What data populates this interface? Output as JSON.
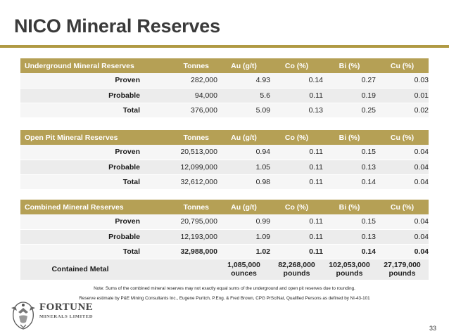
{
  "title": "NICO Mineral Reserves",
  "columns": [
    "Tonnes",
    "Au (g/t)",
    "Co (%)",
    "Bi (%)",
    "Cu (%)"
  ],
  "sections": [
    {
      "heading": "Underground Mineral Reserves",
      "rows": [
        {
          "label": "Proven",
          "tonnes": "282,000",
          "au": "4.93",
          "co": "0.14",
          "bi": "0.27",
          "cu": "0.03"
        },
        {
          "label": "Probable",
          "tonnes": "94,000",
          "au": "5.6",
          "co": "0.11",
          "bi": "0.19",
          "cu": "0.01"
        },
        {
          "label": "Total",
          "tonnes": "376,000",
          "au": "5.09",
          "co": "0.13",
          "bi": "0.25",
          "cu": "0.02"
        }
      ]
    },
    {
      "heading": "Open Pit Mineral Reserves",
      "rows": [
        {
          "label": "Proven",
          "tonnes": "20,513,000",
          "au": "0.94",
          "co": "0.11",
          "bi": "0.15",
          "cu": "0.04"
        },
        {
          "label": "Probable",
          "tonnes": "12,099,000",
          "au": "1.05",
          "co": "0.11",
          "bi": "0.13",
          "cu": "0.04"
        },
        {
          "label": "Total",
          "tonnes": "32,612,000",
          "au": "0.98",
          "co": "0.11",
          "bi": "0.14",
          "cu": "0.04"
        }
      ]
    },
    {
      "heading": "Combined Mineral Reserves",
      "rows": [
        {
          "label": "Proven",
          "tonnes": "20,795,000",
          "au": "0.99",
          "co": "0.11",
          "bi": "0.15",
          "cu": "0.04"
        },
        {
          "label": "Probable",
          "tonnes": "12,193,000",
          "au": "1.09",
          "co": "0.11",
          "bi": "0.13",
          "cu": "0.04"
        },
        {
          "label": "Total",
          "tonnes": "32,988,000",
          "au": "1.02",
          "co": "0.11",
          "bi": "0.14",
          "cu": "0.04"
        }
      ],
      "contained_metal": {
        "label": "Contained Metal",
        "au": {
          "value": "1,085,000",
          "unit": "ounces"
        },
        "co": {
          "value": "82,268,000",
          "unit": "pounds"
        },
        "bi": {
          "value": "102,053,000",
          "unit": "pounds"
        },
        "cu": {
          "value": "27,179,000",
          "unit": "pounds"
        }
      }
    }
  ],
  "notes": [
    "Note: Sums of the combined mineral reserves may not exactly equal  sums of the underground and open pit reserves due to rounding.",
    "Reserve estimate by P&E Mining Consultants Inc., Eugene Puritch, P.Eng. & Fred Brown, CPG PrSciNat, Qualified Persons as defined by NI-43-101"
  ],
  "logo": {
    "name": "FORTUNE",
    "subtitle": "MINERALS LIMITED",
    "accent": "#b5a055"
  },
  "page_number": "33"
}
